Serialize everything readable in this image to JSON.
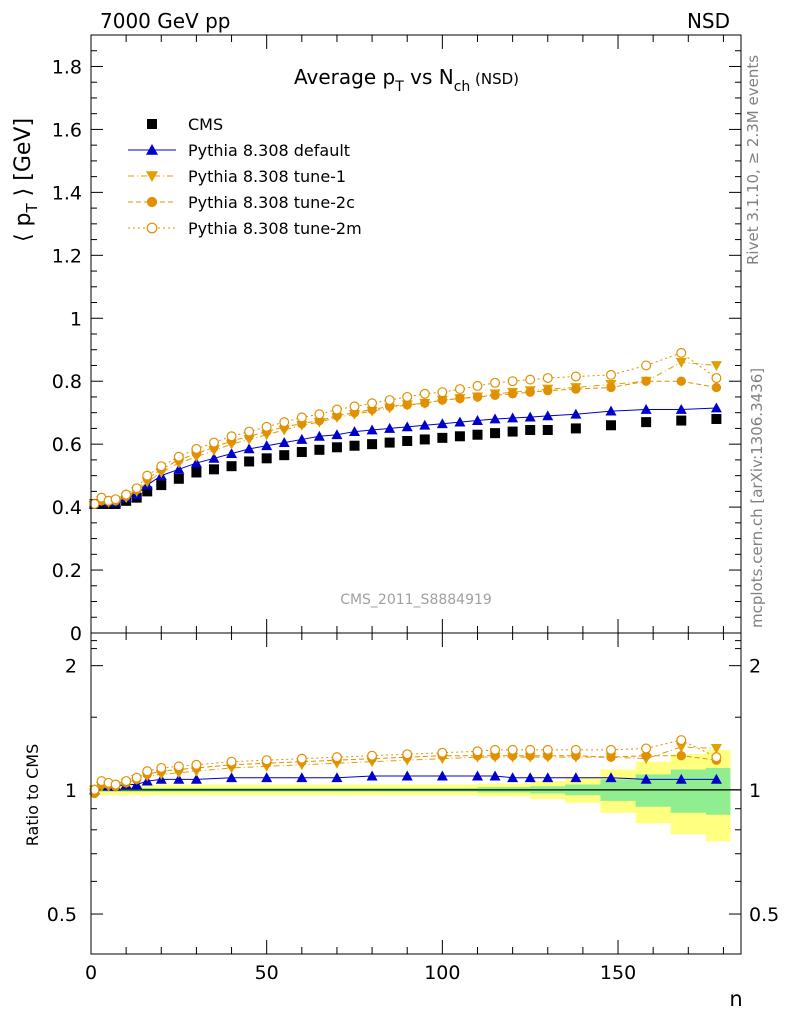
{
  "header": {
    "left": "7000 GeV pp",
    "right": "NSD"
  },
  "side_text": {
    "rivet": "Rivet 3.1.10, ≥ 2.3M events",
    "mcplots": "mcplots.cern.ch [arXiv:1306.3436]"
  },
  "watermark": "CMS_2011_S8884919",
  "chart_data": [
    {
      "type": "scatter",
      "title_main": "Average p",
      "title_sub1": "T",
      "title_mid": " vs N",
      "title_sub2": "ch",
      "title_tail": " (NSD)",
      "ylabel_open": "⟨ p",
      "ylabel_sub": "T",
      "ylabel_close": " ⟩ [GeV]",
      "xlim": [
        0,
        185
      ],
      "ylim": [
        0,
        1.9
      ],
      "y_ticks": [
        "0",
        "0.2",
        "0.4",
        "0.6",
        "0.8",
        "1",
        "1.2",
        "1.4",
        "1.6",
        "1.8"
      ],
      "legend": [
        {
          "label": "CMS",
          "color": "#000000",
          "marker": "square",
          "line": "none"
        },
        {
          "label": "Pythia 8.308 default",
          "color": "#0000cc",
          "marker": "triangle-up",
          "line": "solid"
        },
        {
          "label": "Pythia 8.308 tune-1",
          "color": "#e0a000",
          "marker": "triangle-down",
          "line": "dashdot"
        },
        {
          "label": "Pythia 8.308 tune-2c",
          "color": "#e09000",
          "marker": "circle",
          "line": "dashed"
        },
        {
          "label": "Pythia 8.308 tune-2m",
          "color": "#e09000",
          "marker": "circle-open",
          "line": "dotted"
        }
      ],
      "series": [
        {
          "name": "CMS",
          "x": [
            1,
            3,
            5,
            7,
            10,
            13,
            16,
            20,
            25,
            30,
            35,
            40,
            45,
            50,
            55,
            60,
            65,
            70,
            75,
            80,
            85,
            90,
            95,
            100,
            105,
            110,
            115,
            120,
            125,
            130,
            138,
            148,
            158,
            168,
            178
          ],
          "y": [
            0.41,
            0.41,
            0.41,
            0.41,
            0.42,
            0.43,
            0.45,
            0.47,
            0.49,
            0.51,
            0.52,
            0.53,
            0.545,
            0.555,
            0.565,
            0.575,
            0.582,
            0.59,
            0.595,
            0.6,
            0.605,
            0.61,
            0.615,
            0.62,
            0.625,
            0.63,
            0.635,
            0.64,
            0.645,
            0.645,
            0.65,
            0.66,
            0.67,
            0.675,
            0.68
          ]
        },
        {
          "name": "Pythia 8.308 default",
          "x": [
            1,
            3,
            5,
            7,
            10,
            13,
            16,
            20,
            25,
            30,
            35,
            40,
            45,
            50,
            55,
            60,
            65,
            70,
            75,
            80,
            85,
            90,
            95,
            100,
            105,
            110,
            115,
            120,
            125,
            130,
            138,
            148,
            158,
            168,
            178
          ],
          "y": [
            0.41,
            0.42,
            0.415,
            0.415,
            0.43,
            0.44,
            0.47,
            0.5,
            0.52,
            0.54,
            0.555,
            0.57,
            0.585,
            0.595,
            0.605,
            0.615,
            0.625,
            0.63,
            0.64,
            0.645,
            0.65,
            0.655,
            0.66,
            0.665,
            0.67,
            0.675,
            0.68,
            0.683,
            0.686,
            0.69,
            0.695,
            0.705,
            0.71,
            0.71,
            0.715
          ]
        },
        {
          "name": "Pythia 8.308 tune-1",
          "x": [
            1,
            3,
            5,
            7,
            10,
            13,
            16,
            20,
            25,
            30,
            35,
            40,
            45,
            50,
            55,
            60,
            65,
            70,
            75,
            80,
            85,
            90,
            95,
            100,
            105,
            110,
            115,
            120,
            125,
            130,
            138,
            148,
            158,
            168,
            178
          ],
          "y": [
            0.41,
            0.42,
            0.415,
            0.42,
            0.43,
            0.45,
            0.48,
            0.51,
            0.54,
            0.56,
            0.58,
            0.6,
            0.615,
            0.63,
            0.645,
            0.66,
            0.67,
            0.685,
            0.695,
            0.705,
            0.715,
            0.725,
            0.73,
            0.74,
            0.745,
            0.75,
            0.76,
            0.765,
            0.77,
            0.775,
            0.78,
            0.79,
            0.8,
            0.86,
            0.85
          ]
        },
        {
          "name": "Pythia 8.308 tune-2c",
          "x": [
            1,
            3,
            5,
            7,
            10,
            13,
            16,
            20,
            25,
            30,
            35,
            40,
            45,
            50,
            55,
            60,
            65,
            70,
            75,
            80,
            85,
            90,
            95,
            100,
            105,
            110,
            115,
            120,
            125,
            130,
            138,
            148,
            158,
            168,
            178
          ],
          "y": [
            0.41,
            0.42,
            0.42,
            0.42,
            0.435,
            0.455,
            0.49,
            0.52,
            0.55,
            0.57,
            0.59,
            0.61,
            0.625,
            0.64,
            0.655,
            0.665,
            0.675,
            0.69,
            0.7,
            0.71,
            0.72,
            0.725,
            0.73,
            0.74,
            0.745,
            0.75,
            0.755,
            0.76,
            0.765,
            0.77,
            0.775,
            0.78,
            0.8,
            0.8,
            0.78
          ]
        },
        {
          "name": "Pythia 8.308 tune-2m",
          "x": [
            1,
            3,
            5,
            7,
            10,
            13,
            16,
            20,
            25,
            30,
            35,
            40,
            45,
            50,
            55,
            60,
            65,
            70,
            75,
            80,
            85,
            90,
            95,
            100,
            105,
            110,
            115,
            120,
            125,
            130,
            138,
            148,
            158,
            168,
            178
          ],
          "y": [
            0.41,
            0.43,
            0.42,
            0.425,
            0.44,
            0.46,
            0.5,
            0.53,
            0.56,
            0.585,
            0.605,
            0.625,
            0.64,
            0.655,
            0.67,
            0.685,
            0.695,
            0.71,
            0.72,
            0.73,
            0.74,
            0.75,
            0.76,
            0.765,
            0.775,
            0.785,
            0.795,
            0.8,
            0.805,
            0.81,
            0.815,
            0.82,
            0.85,
            0.89,
            0.81
          ]
        }
      ]
    },
    {
      "type": "scatter",
      "ylabel": "Ratio to CMS",
      "xlabel": "n",
      "xlim": [
        0,
        185
      ],
      "ylim": [
        0.4,
        2.4
      ],
      "log_y": true,
      "y_ticks": [
        "0.5",
        "1",
        "2"
      ],
      "x_ticks": [
        "0",
        "50",
        "100",
        "150"
      ],
      "band_colors": {
        "stat": "#90ee90",
        "total": "#ffff80"
      },
      "band": {
        "x": [
          1,
          20,
          40,
          60,
          80,
          100,
          120,
          130,
          140,
          150,
          160,
          170,
          180
        ],
        "stat": [
          0.01,
          0.01,
          0.01,
          0.01,
          0.01,
          0.01,
          0.015,
          0.02,
          0.03,
          0.06,
          0.09,
          0.12,
          0.13
        ],
        "total": [
          0.03,
          0.03,
          0.03,
          0.03,
          0.03,
          0.03,
          0.035,
          0.05,
          0.07,
          0.12,
          0.17,
          0.22,
          0.25
        ]
      },
      "series": [
        {
          "name": "Pythia 8.308 default",
          "x": [
            1,
            3,
            5,
            7,
            10,
            13,
            16,
            20,
            25,
            30,
            40,
            50,
            60,
            70,
            80,
            90,
            100,
            110,
            115,
            120,
            125,
            130,
            138,
            148,
            158,
            168,
            178
          ],
          "y": [
            1.0,
            1.03,
            1.02,
            1.02,
            1.03,
            1.03,
            1.05,
            1.06,
            1.06,
            1.06,
            1.07,
            1.07,
            1.07,
            1.07,
            1.08,
            1.08,
            1.08,
            1.08,
            1.08,
            1.07,
            1.07,
            1.07,
            1.07,
            1.07,
            1.06,
            1.06,
            1.06
          ]
        },
        {
          "name": "Pythia 8.308 tune-1",
          "x": [
            1,
            3,
            5,
            7,
            10,
            13,
            16,
            20,
            25,
            30,
            40,
            50,
            60,
            70,
            80,
            90,
            100,
            110,
            115,
            120,
            125,
            130,
            138,
            148,
            158,
            168,
            178
          ],
          "y": [
            1.0,
            1.02,
            1.02,
            1.02,
            1.04,
            1.06,
            1.08,
            1.09,
            1.1,
            1.11,
            1.13,
            1.14,
            1.15,
            1.16,
            1.17,
            1.18,
            1.19,
            1.2,
            1.2,
            1.2,
            1.2,
            1.2,
            1.2,
            1.2,
            1.19,
            1.27,
            1.26
          ]
        },
        {
          "name": "Pythia 8.308 tune-2c",
          "x": [
            1,
            3,
            5,
            7,
            10,
            13,
            16,
            20,
            25,
            30,
            40,
            50,
            60,
            70,
            80,
            90,
            100,
            110,
            115,
            120,
            125,
            130,
            138,
            148,
            158,
            168,
            178
          ],
          "y": [
            0.98,
            1.03,
            1.03,
            1.02,
            1.04,
            1.06,
            1.09,
            1.11,
            1.12,
            1.13,
            1.15,
            1.16,
            1.17,
            1.18,
            1.19,
            1.2,
            1.21,
            1.21,
            1.21,
            1.21,
            1.21,
            1.21,
            1.21,
            1.2,
            1.21,
            1.21,
            1.18
          ]
        },
        {
          "name": "Pythia 8.308 tune-2m",
          "x": [
            1,
            3,
            5,
            7,
            10,
            13,
            16,
            20,
            25,
            30,
            40,
            50,
            60,
            70,
            80,
            90,
            100,
            110,
            115,
            120,
            125,
            130,
            138,
            148,
            158,
            168,
            178
          ],
          "y": [
            1.0,
            1.05,
            1.04,
            1.03,
            1.05,
            1.07,
            1.11,
            1.13,
            1.14,
            1.15,
            1.17,
            1.18,
            1.19,
            1.2,
            1.21,
            1.22,
            1.23,
            1.24,
            1.25,
            1.25,
            1.25,
            1.25,
            1.25,
            1.25,
            1.26,
            1.32,
            1.2
          ]
        }
      ]
    }
  ]
}
